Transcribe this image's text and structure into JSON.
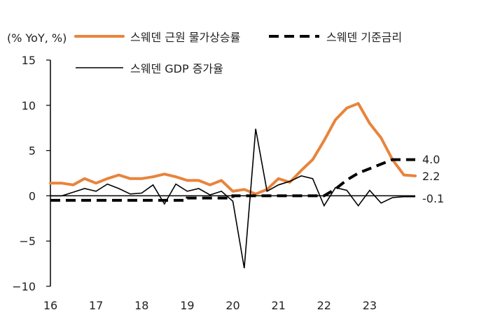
{
  "chart_data": {
    "type": "line",
    "ylabel": "(% YoY, %)",
    "ylim": [
      -10,
      15
    ],
    "yticks": [
      15,
      10,
      5,
      0,
      -5,
      -10
    ],
    "ytick_labels": [
      "15",
      "10",
      "5",
      "0",
      "−5",
      "−10"
    ],
    "xlim": [
      16,
      24
    ],
    "xticks": [
      16,
      17,
      18,
      19,
      20,
      21,
      22,
      23
    ],
    "xtick_labels": [
      "16",
      "17",
      "18",
      "19",
      "20",
      "21",
      "22",
      "23"
    ],
    "grid": false,
    "legend_position": "top",
    "colors": {
      "core_cpi": "#E8843C",
      "policy_rate": "#000000",
      "gdp": "#000000",
      "axis": "#000000"
    },
    "series": [
      {
        "name": "스웨덴 근원 물가상승률",
        "key": "core_cpi",
        "style": "thick-solid",
        "end_label": "2.2",
        "x": [
          16.0,
          16.25,
          16.5,
          16.75,
          17.0,
          17.25,
          17.5,
          17.75,
          18.0,
          18.25,
          18.5,
          18.75,
          19.0,
          19.25,
          19.5,
          19.75,
          20.0,
          20.25,
          20.5,
          20.75,
          21.0,
          21.25,
          21.5,
          21.75,
          22.0,
          22.25,
          22.5,
          22.75,
          23.0,
          23.25,
          23.5,
          23.75,
          24.0
        ],
        "y": [
          1.4,
          1.4,
          1.2,
          1.9,
          1.4,
          1.9,
          2.3,
          1.9,
          1.9,
          2.1,
          2.4,
          2.1,
          1.7,
          1.7,
          1.2,
          1.7,
          0.5,
          0.7,
          0.2,
          0.7,
          1.9,
          1.5,
          2.8,
          4.0,
          6.1,
          8.4,
          9.7,
          10.2,
          8.0,
          6.4,
          4.0,
          2.3,
          2.2
        ]
      },
      {
        "name": "스웨덴 기준금리",
        "key": "policy_rate",
        "style": "thick-dashed",
        "end_label": "4.0",
        "x": [
          16.0,
          19.0,
          19.0,
          20.0,
          20.0,
          22.0,
          22.25,
          22.5,
          22.75,
          23.0,
          23.25,
          23.5,
          23.75,
          24.0
        ],
        "y": [
          -0.5,
          -0.5,
          -0.25,
          -0.25,
          0.0,
          0.0,
          0.75,
          1.75,
          2.5,
          3.0,
          3.5,
          4.0,
          4.0,
          4.0
        ]
      },
      {
        "name": "스웨덴 GDP 증가율",
        "key": "gdp",
        "style": "thin-solid",
        "end_label": "-0.1",
        "x": [
          16.0,
          16.25,
          16.5,
          16.75,
          17.0,
          17.25,
          17.5,
          17.75,
          18.0,
          18.25,
          18.5,
          18.75,
          19.0,
          19.25,
          19.5,
          19.75,
          20.0,
          20.25,
          20.5,
          20.75,
          21.0,
          21.25,
          21.5,
          21.75,
          22.0,
          22.25,
          22.5,
          22.75,
          23.0,
          23.25,
          23.5,
          23.75,
          24.0
        ],
        "y": [
          0.0,
          0.0,
          0.4,
          0.8,
          0.5,
          1.3,
          0.8,
          0.2,
          0.3,
          1.2,
          -0.9,
          1.3,
          0.5,
          0.8,
          0.1,
          0.5,
          -0.6,
          -8.0,
          7.4,
          0.5,
          1.2,
          1.6,
          2.2,
          1.9,
          -1.1,
          0.9,
          0.6,
          -1.1,
          0.6,
          -0.8,
          -0.2,
          -0.1,
          -0.1
        ]
      }
    ]
  }
}
